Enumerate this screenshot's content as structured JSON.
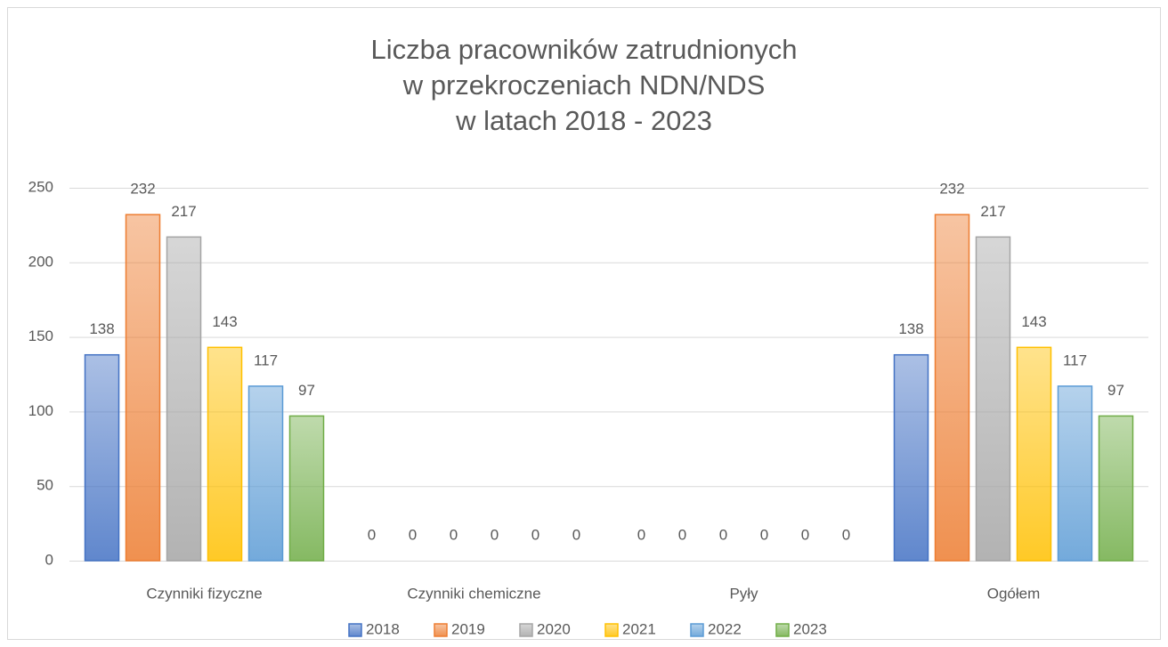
{
  "chart_data": {
    "type": "bar",
    "title": [
      "Liczba pracowników zatrudnionych",
      "w przekroczeniach NDN/NDS",
      "w latach 2018 - 2023"
    ],
    "categories": [
      "Czynniki fizyczne",
      "Czynniki chemiczne",
      "Pyły",
      "Ogółem"
    ],
    "series": [
      {
        "name": "2018",
        "color": "#4472c4",
        "values": [
          138,
          0,
          0,
          138
        ]
      },
      {
        "name": "2019",
        "color": "#ed7d31",
        "values": [
          232,
          0,
          0,
          232
        ]
      },
      {
        "name": "2020",
        "color": "#a5a5a5",
        "values": [
          217,
          0,
          0,
          217
        ]
      },
      {
        "name": "2021",
        "color": "#ffc000",
        "values": [
          143,
          0,
          0,
          143
        ]
      },
      {
        "name": "2022",
        "color": "#5b9bd5",
        "values": [
          117,
          0,
          0,
          117
        ]
      },
      {
        "name": "2023",
        "color": "#70ad47",
        "values": [
          97,
          0,
          0,
          97
        ]
      }
    ],
    "ylim": [
      0,
      250
    ],
    "yticks": [
      0,
      50,
      100,
      150,
      200,
      250
    ],
    "grid": true,
    "legend": "bottom"
  }
}
